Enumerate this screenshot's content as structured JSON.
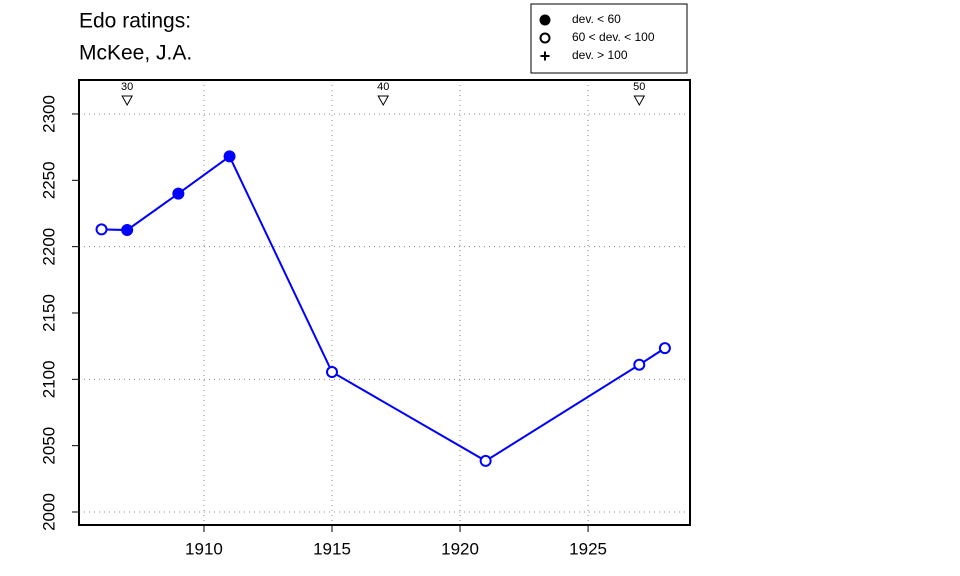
{
  "chart_data": {
    "type": "line",
    "title": [
      "Edo ratings:",
      "McKee, J.A."
    ],
    "x": [
      1906,
      1907,
      1909,
      1911,
      1915,
      1921,
      1927,
      1928
    ],
    "series": [
      {
        "color": "#0000ff",
        "values": [
          2213,
          2212.5,
          2240,
          2268,
          2105.5,
          2038.5,
          2111,
          2123.5
        ],
        "deviation_class": [
          1,
          0,
          0,
          0,
          1,
          1,
          1,
          1
        ]
      }
    ],
    "legend": {
      "position": "top-right",
      "entries": [
        {
          "label": "dev. < 60",
          "marker": "filled-circle"
        },
        {
          "label": "60 < dev. < 100",
          "marker": "open-circle"
        },
        {
          "label": "dev. > 100",
          "marker": "plus"
        }
      ]
    },
    "annotations": [
      {
        "x": 1907,
        "label": "30"
      },
      {
        "x": 1917,
        "label": "40"
      },
      {
        "x": 1927,
        "label": "50"
      }
    ],
    "xlim": [
      1905.12,
      1928.98
    ],
    "ylim": [
      1990.2,
      2325.6
    ],
    "xticks": [
      1910,
      1915,
      1920,
      1925
    ],
    "yticks": [
      2000,
      2050,
      2100,
      2150,
      2200,
      2250,
      2300
    ],
    "xgrid": [
      1910,
      1915,
      1920,
      1925
    ],
    "ygrid": [
      2000,
      2100,
      2200,
      2300
    ]
  }
}
